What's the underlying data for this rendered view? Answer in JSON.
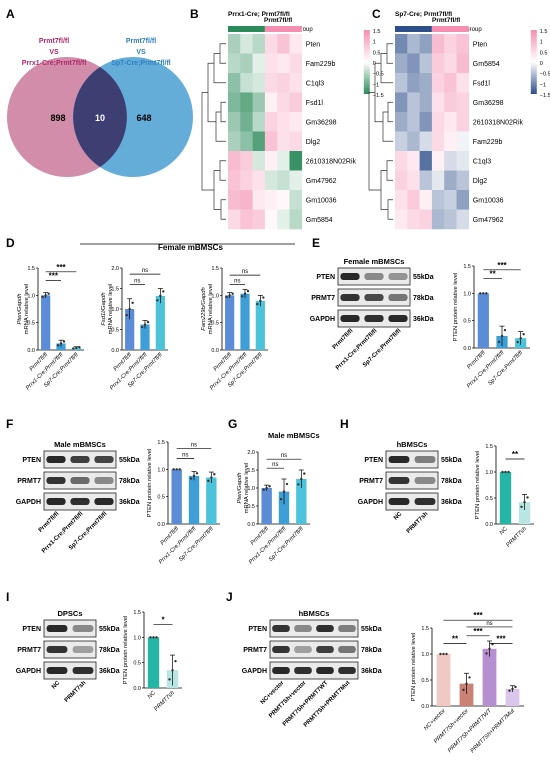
{
  "panels": {
    "A": {
      "letter": "A",
      "left_title": [
        "Prmt7fl/fl",
        "VS",
        "Prrx1-Cre;Prmt7fl/fl"
      ],
      "right_title": [
        "Prmt7fl/fl",
        "VS",
        "Sp7-Cre;Prmt7fl/fl"
      ],
      "left_only": "898",
      "overlap": "10",
      "right_only": "648",
      "left_color": "#c9799a",
      "right_color": "#4a9fd2"
    },
    "B": {
      "letter": "B",
      "groups": [
        "Prrx1-Cre; Prmt7fl/fl",
        "Prmt7fl/fl"
      ],
      "group_label": "Group",
      "genes": [
        "Pten",
        "Fam229b",
        "C1ql3",
        "Fsd1l",
        "Gm36298",
        "Dlg2",
        "2610318N02Rik",
        "Gm47962",
        "Gm10036",
        "Gm5854"
      ],
      "legend_ticks": [
        "1.5",
        "1",
        "0.5",
        "0",
        "−0.5",
        "−1",
        "−1.5"
      ],
      "low_color": "#2a8a5a",
      "high_color": "#f48fb1"
    },
    "C": {
      "letter": "C",
      "groups": [
        "Sp7-Cre; Prmt7fl/fl",
        "Prmt7fl/fl"
      ],
      "group_label": "Group",
      "genes": [
        "Pten",
        "Gm5854",
        "Fsd1l",
        "Gm36298",
        "2610318N02Rik",
        "Fam229b",
        "C1ql3",
        "Dlg2",
        "Gm10036",
        "Gm47962"
      ],
      "legend_ticks": [
        "1.5",
        "1",
        "0.5",
        "0",
        "−0.5",
        "−1",
        "−1.5"
      ],
      "low_color": "#2c4f8a",
      "high_color": "#f48fb1"
    },
    "D": {
      "letter": "D",
      "title": "Female mBMSCs",
      "charts": [
        {
          "ylabel": "Pten/Gapdh",
          "ylabel2": "mRNA relative level",
          "sig": [
            "***",
            "***"
          ]
        },
        {
          "ylabel": "Fsd1l/Gapdh",
          "ylabel2": "mRNA relative level",
          "sig": [
            "ns",
            "ns"
          ]
        },
        {
          "ylabel": "Fam229b/Gapdh",
          "ylabel2": "mRNA relative level",
          "sig": [
            "ns",
            "ns"
          ]
        }
      ],
      "xticks": [
        "Prmt7fl/fl",
        "Prrx1-Cre;Prmt7fl/fl",
        "Sp7-Cre;Prmt7fl/fl"
      ]
    },
    "E": {
      "letter": "E",
      "blot_title": "Female mBMSCs",
      "bands": [
        "PTEN",
        "PRMT7",
        "GAPDH"
      ],
      "sizes": [
        "55kDa",
        "78kDa",
        "36kDa"
      ],
      "lanes": [
        "Prmt7fl/fl",
        "Prrx1-Cre;Prmt7fl/fl",
        "Sp7-Cre;Prmt7fl/fl"
      ],
      "ylabel": "PTEN protein relative level",
      "sig": [
        "**",
        "***"
      ]
    },
    "F": {
      "letter": "F",
      "blot_title": "Male mBMSCs",
      "bands": [
        "PTEN",
        "PRMT7",
        "GAPDH"
      ],
      "sizes": [
        "55kDa",
        "78kDa",
        "36kDa"
      ],
      "lanes": [
        "Prmt7fl/fl",
        "Prrx1-Cre;Prmt7fl/fl",
        "Sp7-Cre;Prmt7fl/fl"
      ],
      "ylabel": "PTEN protein relative level",
      "sig": [
        "ns",
        "ns"
      ]
    },
    "G": {
      "letter": "G",
      "title": "Male mBMSCs",
      "ylabel": "Pten/Gapdh",
      "ylabel2": "mRNA relative level",
      "sig": [
        "ns",
        "ns"
      ]
    },
    "H": {
      "letter": "H",
      "blot_title": "hBMSCs",
      "bands": [
        "PTEN",
        "PRMT7",
        "GAPDH"
      ],
      "sizes": [
        "55kDa",
        "78kDa",
        "36kDa"
      ],
      "lanes": [
        "NC",
        "PRMT7sh"
      ],
      "ylabel": "PTEN protein relative level",
      "sig": [
        "**"
      ]
    },
    "I": {
      "letter": "I",
      "blot_title": "DPSCs",
      "bands": [
        "PTEN",
        "PRMT7",
        "GAPDH"
      ],
      "sizes": [
        "55kDa",
        "78kDa",
        "36kDa"
      ],
      "lanes": [
        "NC",
        "PRMT7sh"
      ],
      "ylabel": "PTEN protein relative level",
      "sig": [
        "*"
      ]
    },
    "J": {
      "letter": "J",
      "blot_title": "hBMSCs",
      "bands": [
        "PTEN",
        "PRMT7",
        "GAPDH"
      ],
      "sizes": [
        "55kDa",
        "78kDa",
        "36kDa"
      ],
      "lanes": [
        "NC+vector",
        "PRMT7Sh+vector",
        "PRMT7Sh+PRMT7WT",
        "PRMT7Sh+PRMT7Mut"
      ],
      "ylabel": "PTEN protein relative level",
      "sig": [
        "**",
        "***",
        "***",
        "ns",
        "***"
      ]
    }
  },
  "chart_data": [
    {
      "panel": "D1",
      "type": "bar",
      "categories": [
        "Prmt7fl/fl",
        "Prrx1-Cre;Prmt7fl/fl",
        "Sp7-Cre;Prmt7fl/fl"
      ],
      "values": [
        1.0,
        0.12,
        0.04
      ],
      "errors": [
        0.05,
        0.06,
        0.02
      ],
      "ylim": [
        0,
        1.5
      ],
      "yticks": [
        "0.0",
        "0.5",
        "1.0",
        "1.5"
      ],
      "colors": [
        "#5b8dd6",
        "#3d9fd6",
        "#4cc3d9"
      ]
    },
    {
      "panel": "D2",
      "type": "bar",
      "categories": [
        "Prmt7fl/fl",
        "Prrx1-Cre;Prmt7fl/fl",
        "Sp7-Cre;Prmt7fl/fl"
      ],
      "values": [
        1.0,
        0.62,
        1.32
      ],
      "errors": [
        0.25,
        0.1,
        0.18
      ],
      "ylim": [
        0,
        2.0
      ],
      "yticks": [
        "0.0",
        "0.5",
        "1.0",
        "1.5",
        "2.0"
      ],
      "colors": [
        "#5b8dd6",
        "#3d9fd6",
        "#4cc3d9"
      ]
    },
    {
      "panel": "D3",
      "type": "bar",
      "categories": [
        "Prmt7fl/fl",
        "Prrx1-Cre;Prmt7fl/fl",
        "Sp7-Cre;Prmt7fl/fl"
      ],
      "values": [
        1.0,
        1.03,
        0.9
      ],
      "errors": [
        0.05,
        0.08,
        0.1
      ],
      "ylim": [
        0,
        1.5
      ],
      "yticks": [
        "0.0",
        "0.5",
        "1.0",
        "1.5"
      ],
      "colors": [
        "#5b8dd6",
        "#3d9fd6",
        "#4cc3d9"
      ]
    },
    {
      "panel": "E",
      "type": "bar",
      "categories": [
        "Prmt7fl/fl",
        "Prrx1-Cre;Prmt7fl/fl",
        "Sp7-Cre;Prmt7fl/fl"
      ],
      "values": [
        1.0,
        0.22,
        0.18
      ],
      "errors": [
        0.0,
        0.18,
        0.12
      ],
      "ylim": [
        0,
        1.5
      ],
      "yticks": [
        "0.0",
        "0.5",
        "1.0",
        "1.5"
      ],
      "colors": [
        "#5b8dd6",
        "#3d9fd6",
        "#4cc3d9"
      ]
    },
    {
      "panel": "F",
      "type": "bar",
      "categories": [
        "Prmt7fl/fl",
        "Prrx1-Cre;Prmt7fl/fl",
        "Sp7-Cre;Prmt7fl/fl"
      ],
      "values": [
        1.0,
        0.88,
        0.85
      ],
      "errors": [
        0.0,
        0.08,
        0.1
      ],
      "ylim": [
        0,
        1.5
      ],
      "yticks": [
        "0.0",
        "0.5",
        "1.0",
        "1.5"
      ],
      "colors": [
        "#5b8dd6",
        "#3d9fd6",
        "#4cc3d9"
      ]
    },
    {
      "panel": "G",
      "type": "bar",
      "categories": [
        "Prmt7fl/fl",
        "Prrx1-Cre;Prmt7fl/fl",
        "Sp7-Cre;Prmt7fl/fl"
      ],
      "values": [
        1.0,
        0.9,
        1.25
      ],
      "errors": [
        0.08,
        0.35,
        0.25
      ],
      "ylim": [
        0,
        2.0
      ],
      "yticks": [
        "0.0",
        "0.5",
        "1.0",
        "1.5",
        "2.0"
      ],
      "colors": [
        "#5b8dd6",
        "#3d9fd6",
        "#4cc3d9"
      ]
    },
    {
      "panel": "H",
      "type": "bar",
      "categories": [
        "NC",
        "PRMT7sh"
      ],
      "values": [
        1.0,
        0.42
      ],
      "errors": [
        0.0,
        0.15
      ],
      "ylim": [
        0,
        1.5
      ],
      "yticks": [
        "0.0",
        "0.5",
        "1.0",
        "1.5"
      ],
      "colors": [
        "#24b5a5",
        "#b9e6e2"
      ]
    },
    {
      "panel": "I",
      "type": "bar",
      "categories": [
        "NC",
        "PRMT7sh"
      ],
      "values": [
        1.0,
        0.35
      ],
      "errors": [
        0.0,
        0.3
      ],
      "ylim": [
        0,
        1.5
      ],
      "yticks": [
        "0.0",
        "0.5",
        "1.0",
        "1.5"
      ],
      "colors": [
        "#24b5a5",
        "#b9e6e2"
      ]
    },
    {
      "panel": "J",
      "type": "bar",
      "categories": [
        "NC+vector",
        "PRMT7Sh+vector",
        "PRMT7Sh+PRMT7WT",
        "PRMT7Sh+PRMT7Mut"
      ],
      "values": [
        1.0,
        0.43,
        1.1,
        0.33
      ],
      "errors": [
        0.0,
        0.2,
        0.15,
        0.06
      ],
      "ylim": [
        0,
        1.5
      ],
      "yticks": [
        "0.0",
        "0.5",
        "1.0",
        "1.5"
      ],
      "colors": [
        "#f1c9c4",
        "#c98273",
        "#b58fd0",
        "#d9c6ea"
      ]
    }
  ]
}
